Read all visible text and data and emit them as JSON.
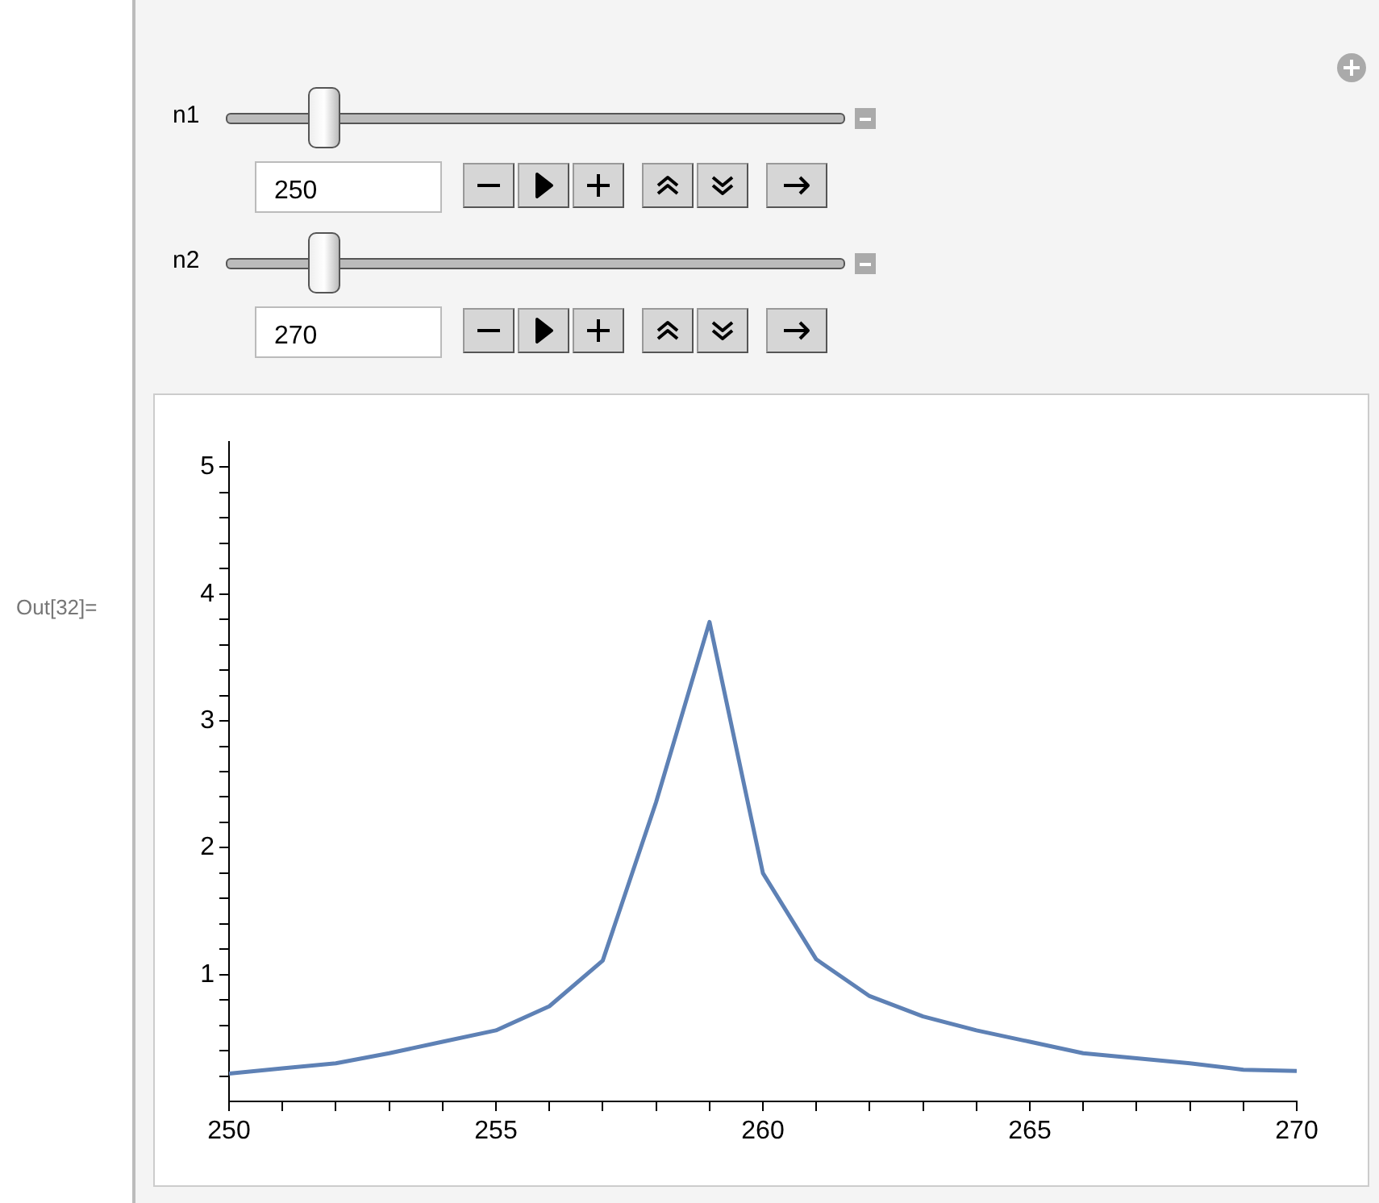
{
  "chart_data": {
    "type": "line",
    "x": [
      250,
      251,
      252,
      253,
      254,
      255,
      256,
      257,
      258,
      259,
      260,
      261,
      262,
      263,
      264,
      265,
      266,
      267,
      268,
      269,
      270
    ],
    "series": [
      {
        "color": "#5e81b5",
        "values": [
          0.22,
          0.26,
          0.3,
          0.38,
          0.47,
          0.56,
          0.75,
          1.11,
          2.36,
          3.78,
          1.8,
          1.12,
          0.83,
          0.67,
          0.56,
          0.47,
          0.38,
          0.34,
          0.3,
          0.25,
          0.24
        ]
      }
    ],
    "xlim": [
      250,
      270
    ],
    "xticks": [
      250,
      {
        "value": 251,
        "label": null
      },
      {
        "value": 252,
        "label": null
      },
      {
        "value": 253,
        "label": null
      },
      {
        "value": 254,
        "label": null
      },
      255,
      {
        "value": 256,
        "label": null
      },
      {
        "value": 257,
        "label": null
      },
      {
        "value": 258,
        "label": null
      },
      {
        "value": 259,
        "label": null
      },
      260,
      {
        "value": 261,
        "label": null
      },
      {
        "value": 262,
        "label": null
      },
      {
        "value": 263,
        "label": null
      },
      {
        "value": 264,
        "label": null
      },
      265,
      {
        "value": 266,
        "label": null
      },
      {
        "value": 267,
        "label": null
      },
      {
        "value": 268,
        "label": null
      },
      {
        "value": 269,
        "label": null
      },
      270
    ],
    "ylim": [
      0,
      5.2
    ],
    "yticks": [
      {
        "value": 0.2,
        "label": null
      },
      {
        "value": 0.4,
        "label": null
      },
      {
        "value": 0.6,
        "label": null
      },
      {
        "value": 0.8,
        "label": null
      },
      1,
      {
        "value": 1.2,
        "label": null
      },
      {
        "value": 1.4,
        "label": null
      },
      {
        "value": 1.6,
        "label": null
      },
      {
        "value": 1.8,
        "label": null
      },
      2,
      {
        "value": 2.2,
        "label": null
      },
      {
        "value": 2.4,
        "label": null
      },
      {
        "value": 2.6,
        "label": null
      },
      {
        "value": 2.8,
        "label": null
      },
      3,
      {
        "value": 3.2,
        "label": null
      },
      {
        "value": 3.4,
        "label": null
      },
      {
        "value": 3.6,
        "label": null
      },
      {
        "value": 3.8,
        "label": null
      },
      4,
      {
        "value": 4.2,
        "label": null
      },
      {
        "value": 4.4,
        "label": null
      },
      {
        "value": 4.6,
        "label": null
      },
      {
        "value": 4.8,
        "label": null
      },
      5
    ],
    "grid": false,
    "legend": false,
    "marker": "none",
    "line_style": "solid",
    "annotations": [
      "n1",
      "250",
      "n2",
      "270",
      "Out[32]="
    ]
  }
}
